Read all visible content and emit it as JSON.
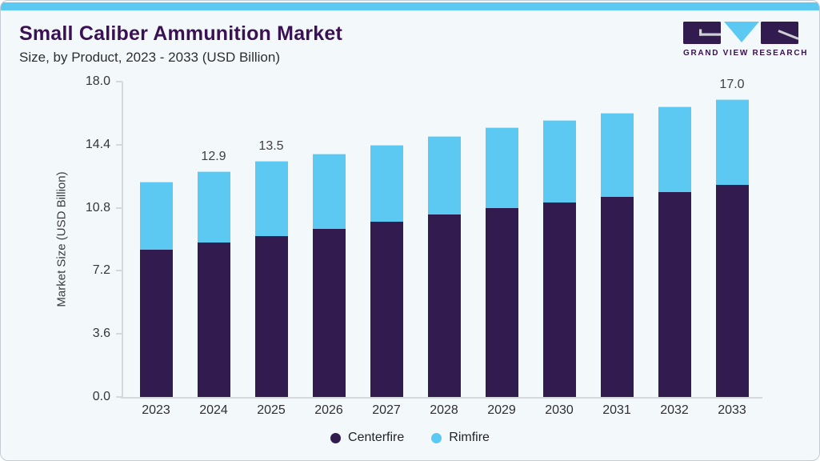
{
  "header": {
    "title": "Small Caliber Ammunition Market",
    "subtitle": "Size, by Product, 2023 - 2033 (USD Billion)",
    "logo_text": "GRAND VIEW RESEARCH"
  },
  "colors": {
    "centerfire": "#321b4e",
    "rimfire": "#5bc9f2",
    "title_purple": "#3a1152",
    "top_stripe": "#5bc9f2",
    "axis_line": "#d5d9de",
    "background": "#f3f8fb"
  },
  "chart_data": {
    "type": "bar",
    "stacked": true,
    "title": "Small Caliber Ammunition Market Size, by Product, 2023 - 2033 (USD Billion)",
    "xlabel": "",
    "ylabel": "Market Size (USD Billion)",
    "ylim": [
      0,
      18
    ],
    "grid": false,
    "legend_position": "bottom",
    "categories": [
      "2023",
      "2024",
      "2025",
      "2026",
      "2027",
      "2028",
      "2029",
      "2030",
      "2031",
      "2032",
      "2033"
    ],
    "series": [
      {
        "name": "Centerfire",
        "color": "#321b4e",
        "values": [
          8.4,
          8.8,
          9.2,
          9.6,
          10.0,
          10.4,
          10.8,
          11.1,
          11.4,
          11.7,
          12.1
        ]
      },
      {
        "name": "Rimfire",
        "color": "#5bc9f2",
        "values": [
          3.9,
          4.1,
          4.3,
          4.3,
          4.4,
          4.5,
          4.6,
          4.7,
          4.8,
          4.9,
          4.9
        ]
      }
    ],
    "totals": [
      12.3,
      12.9,
      13.5,
      13.9,
      14.4,
      14.9,
      15.4,
      15.8,
      16.2,
      16.6,
      17.0
    ],
    "bar_value_labels": [
      null,
      "12.9",
      "13.5",
      null,
      null,
      null,
      null,
      null,
      null,
      null,
      "17.0"
    ],
    "y_ticks": [
      18.0,
      14.4,
      10.8,
      7.2,
      3.6,
      0.0
    ],
    "y_tick_labels": [
      "18.0",
      "14.4",
      "10.8",
      "7.2",
      "3.6",
      "0.0"
    ]
  }
}
